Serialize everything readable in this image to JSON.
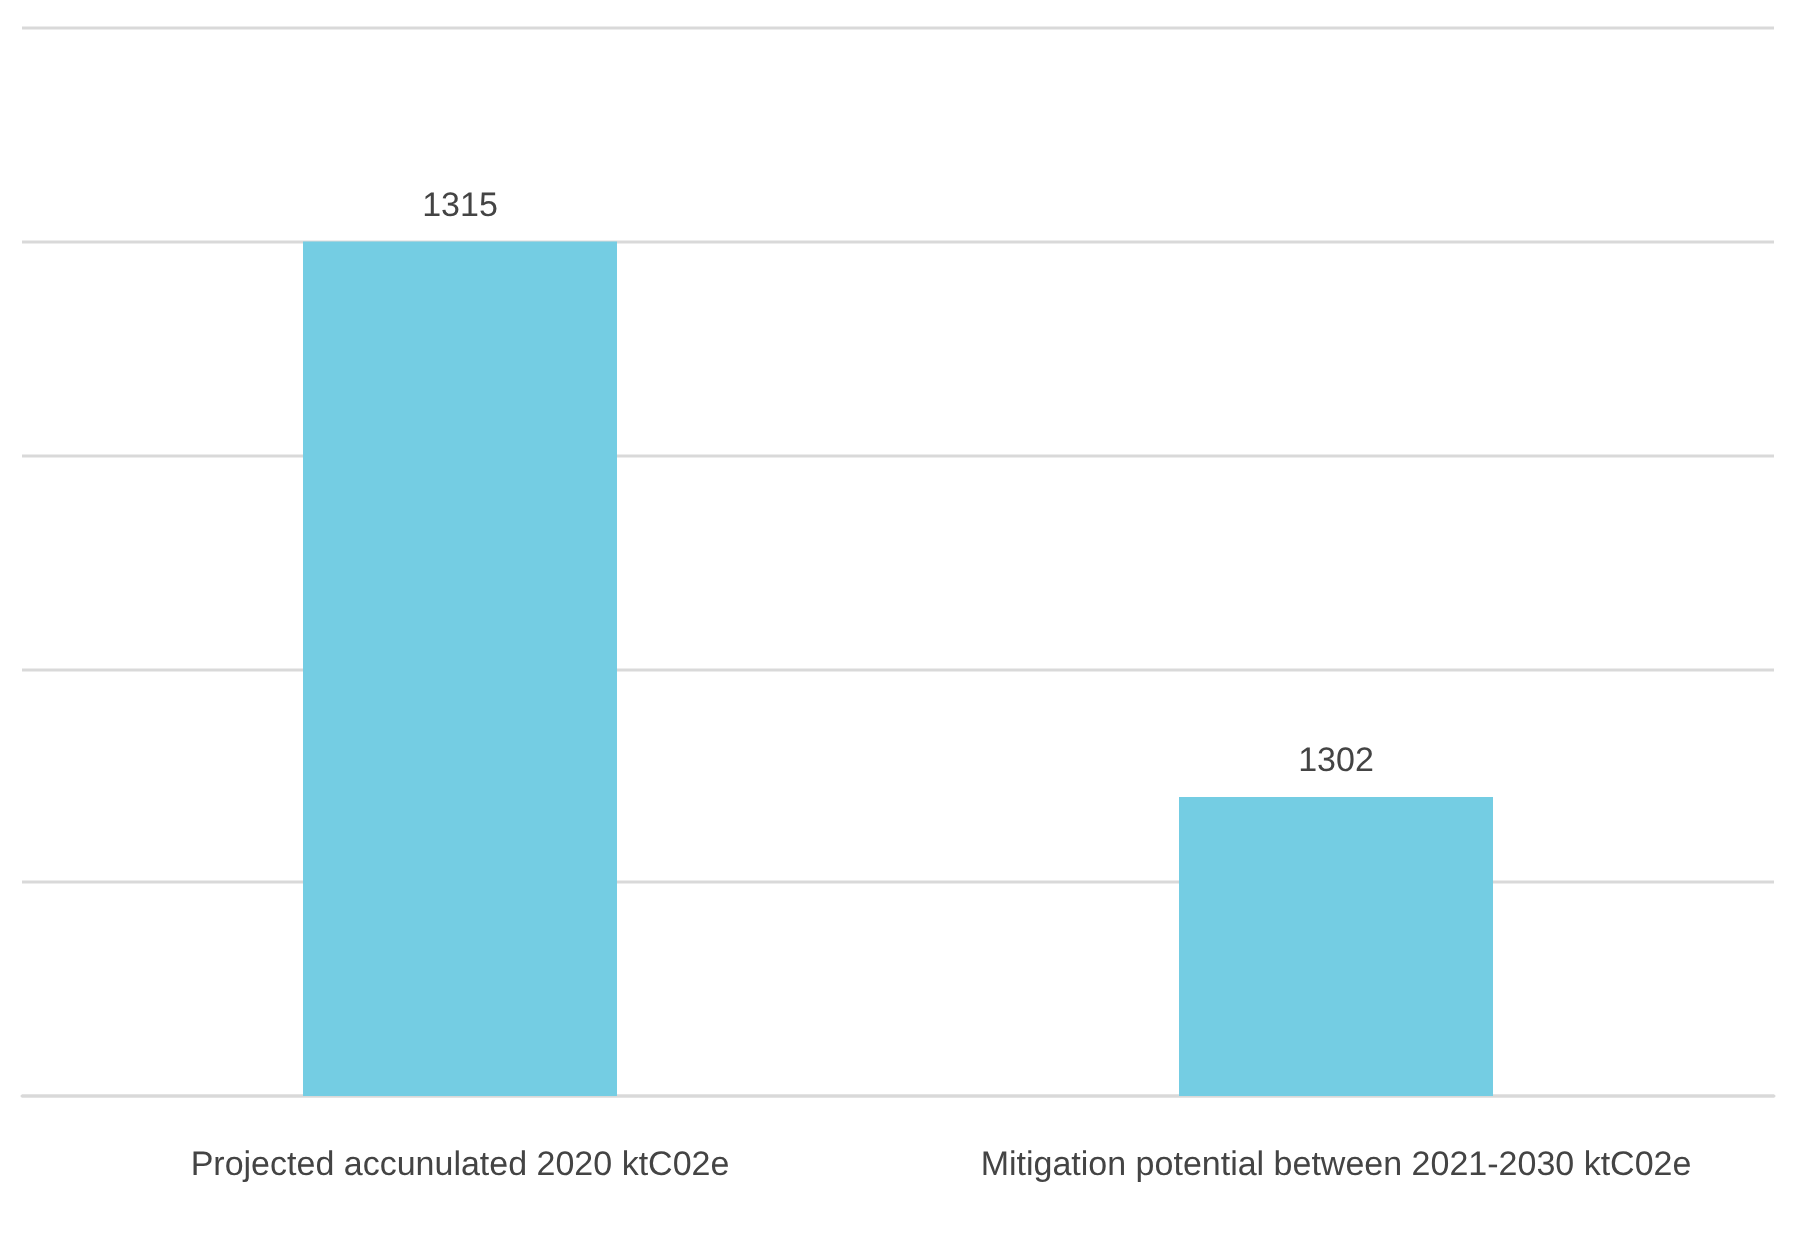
{
  "chart_data": {
    "type": "bar",
    "categories": [
      "Projected accunulated 2020 ktC02e",
      "Mitigation potential between 2021-2030 ktC02e"
    ],
    "values": [
      1315,
      1302
    ],
    "color": "#74cde3",
    "data_labels": true,
    "ylim": [
      1295,
      1320
    ],
    "yticks": [
      {
        "value": 1295,
        "label": null
      },
      {
        "value": 1300,
        "label": null
      },
      {
        "value": 1305,
        "label": null
      },
      {
        "value": 1310,
        "label": null
      },
      {
        "value": 1315,
        "label": null
      },
      {
        "value": 1320,
        "label": null
      }
    ],
    "grid": "y"
  }
}
